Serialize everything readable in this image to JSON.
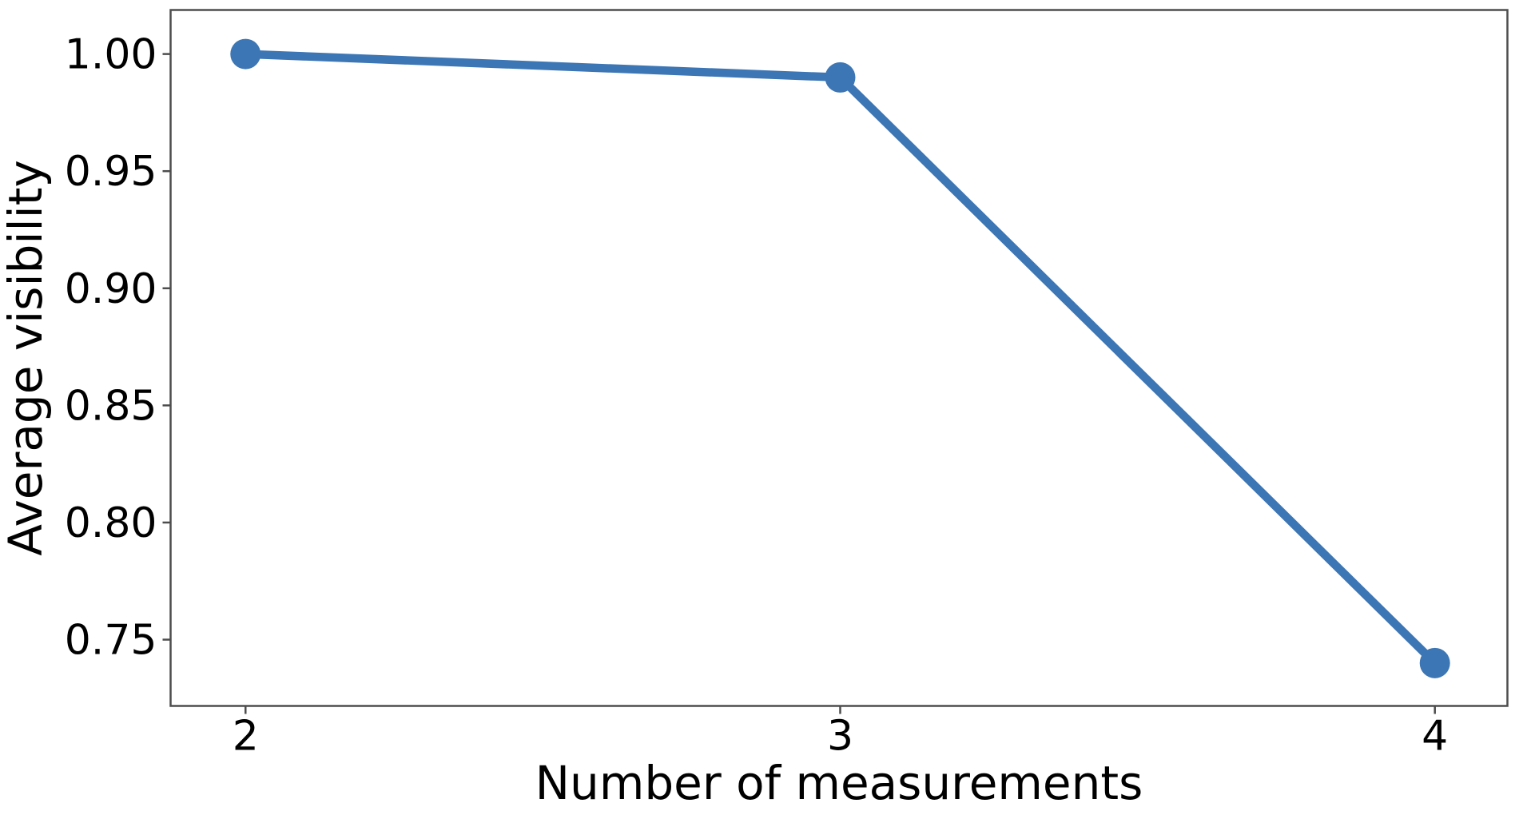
{
  "figure": {
    "background": "#ffffff"
  },
  "chart_data": {
    "type": "line",
    "title": "",
    "xlabel": "Number of measurements",
    "ylabel": "Average visibility",
    "x": [
      2,
      3,
      4
    ],
    "y": [
      1.0,
      0.99,
      0.74
    ],
    "x_ticks": [
      2,
      3,
      4
    ],
    "x_tick_labels": [
      "2",
      "3",
      "4"
    ],
    "y_ticks": [
      1.0,
      0.95,
      0.9,
      0.85,
      0.8,
      0.75
    ],
    "y_tick_labels": [
      "1.00",
      "0.95",
      "0.90",
      "0.85",
      "0.80",
      "0.75"
    ],
    "xlim": [
      1.874,
      4.122
    ],
    "ylim": [
      0.7217,
      1.0188
    ],
    "grid": false,
    "legend": "none",
    "line_color": "#3d76b4",
    "line_width": 10.5,
    "marker": "circle",
    "marker_radius": 19,
    "axis_color": "#4d4d4d",
    "spine_width": 2.5,
    "text_color": "#000000"
  }
}
